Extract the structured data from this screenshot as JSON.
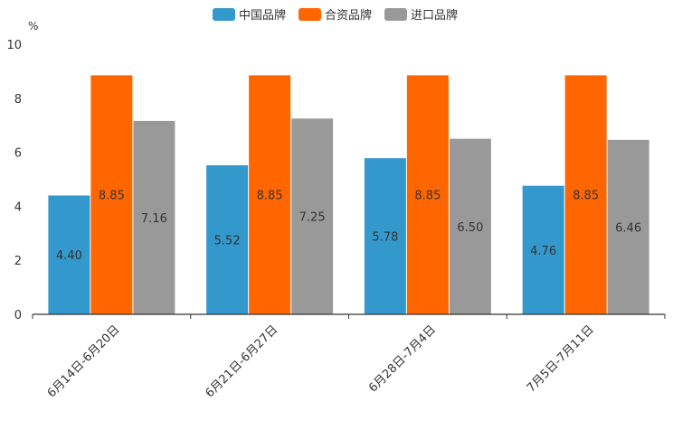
{
  "chart_data": {
    "type": "bar",
    "title": "",
    "unit_label": "%",
    "xlabel": "",
    "ylabel": "%",
    "ylim": [
      0,
      10
    ],
    "yticks": [
      0,
      2,
      4,
      6,
      8,
      10
    ],
    "legend_position": "top-center",
    "grid": false,
    "categories": [
      "6月14日-6月20日",
      "6月21日-6月27日",
      "6月28日-7月4日",
      "7月5日-7月11日"
    ],
    "series": [
      {
        "name": "中国品牌",
        "color": "#3399cc",
        "values": [
          4.4,
          5.52,
          5.78,
          4.76
        ],
        "labels": [
          "4.40",
          "5.52",
          "5.78",
          "4.76"
        ]
      },
      {
        "name": "合资品牌",
        "color": "#ff6600",
        "values": [
          8.85,
          8.85,
          8.85,
          8.85
        ],
        "labels": [
          "8.85",
          "8.85",
          "8.85",
          "8.85"
        ]
      },
      {
        "name": "进口品牌",
        "color": "#999999",
        "values": [
          7.16,
          7.25,
          6.5,
          6.46
        ],
        "labels": [
          "7.16",
          "7.25",
          "6.50",
          "6.46"
        ]
      }
    ]
  }
}
